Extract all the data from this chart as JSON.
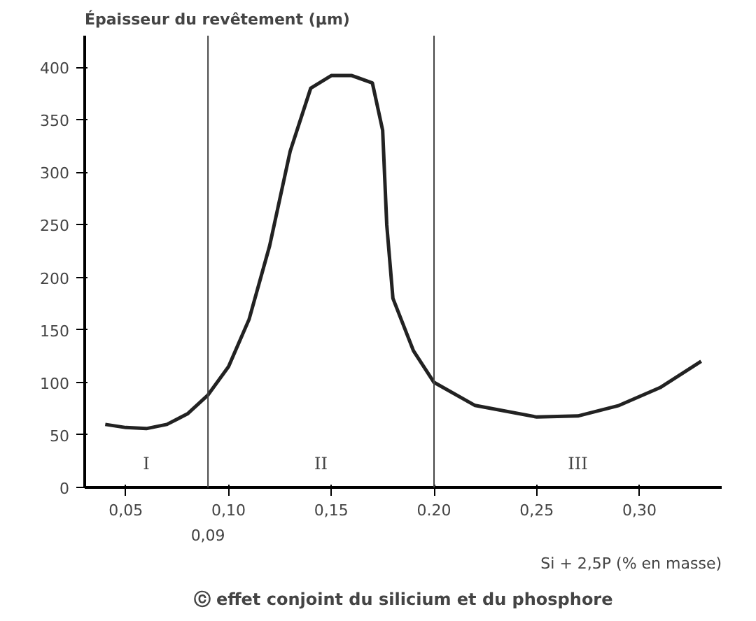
{
  "chart_data": {
    "type": "line",
    "title": "ⓒ effet conjoint du silicium et du phosphore",
    "xlabel": "Si + 2,5P (% en masse)",
    "ylabel": "Épaisseur du revêtement (µm)",
    "x": [
      0.04,
      0.05,
      0.06,
      0.07,
      0.08,
      0.09,
      0.1,
      0.11,
      0.12,
      0.13,
      0.14,
      0.15,
      0.16,
      0.17,
      0.175,
      0.177,
      0.18,
      0.19,
      0.2,
      0.22,
      0.25,
      0.27,
      0.29,
      0.31,
      0.33
    ],
    "series": [
      {
        "color": "#222222",
        "values": [
          60,
          57,
          56,
          60,
          70,
          88,
          115,
          160,
          230,
          320,
          380,
          392,
          392,
          385,
          340,
          250,
          180,
          130,
          100,
          78,
          67,
          68,
          78,
          95,
          120
        ]
      }
    ],
    "xlim": [
      0.03,
      0.34
    ],
    "ylim": [
      0,
      430
    ],
    "xticks": [
      {
        "value": 0.05,
        "label": "0,05"
      },
      {
        "value": 0.1,
        "label": "0,10"
      },
      {
        "value": 0.15,
        "label": "0,15"
      },
      {
        "value": 0.2,
        "label": "0.20"
      },
      {
        "value": 0.25,
        "label": "0,25"
      },
      {
        "value": 0.3,
        "label": "0,30"
      }
    ],
    "yticks": [
      0,
      50,
      100,
      150,
      200,
      250,
      300,
      350,
      400
    ],
    "ref_lines": [
      {
        "axis": "x",
        "value": 0.09,
        "label": "0,09",
        "color": "#444444"
      },
      {
        "axis": "x",
        "value": 0.2,
        "color": "#444444"
      }
    ],
    "annotations": [
      "I",
      "II",
      "III"
    ],
    "grid": false,
    "marker": "none",
    "line_style": "solid"
  }
}
